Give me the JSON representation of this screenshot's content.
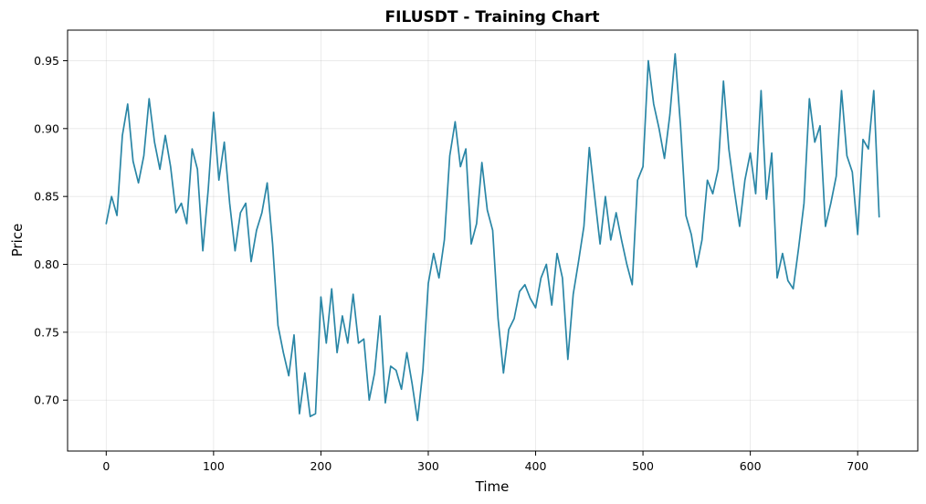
{
  "chart_data": {
    "type": "line",
    "title": "FILUSDT - Training Chart",
    "xlabel": "Time",
    "ylabel": "Price",
    "xlim": [
      -36,
      756
    ],
    "ylim": [
      0.6625,
      0.9725
    ],
    "xticks": [
      0,
      100,
      200,
      300,
      400,
      500,
      600,
      700
    ],
    "yticks": [
      0.7,
      0.75,
      0.8,
      0.85,
      0.9,
      0.95
    ],
    "grid": true,
    "color": "#2a86a6",
    "series": [
      {
        "x": [
          0,
          5,
          10,
          15,
          20,
          25,
          30,
          35,
          40,
          45,
          50,
          55,
          60,
          65,
          70,
          75,
          80,
          85,
          90,
          95,
          100,
          105,
          110,
          115,
          120,
          125,
          130,
          135,
          140,
          145,
          150,
          155,
          160,
          165,
          170,
          175,
          180,
          185,
          190,
          195,
          200,
          205,
          210,
          215,
          220,
          225,
          230,
          235,
          240,
          245,
          250,
          255,
          260,
          265,
          270,
          275,
          280,
          285,
          290,
          295,
          300,
          305,
          310,
          315,
          320,
          325,
          330,
          335,
          340,
          345,
          350,
          355,
          360,
          365,
          370,
          375,
          380,
          385,
          390,
          395,
          400,
          405,
          410,
          415,
          420,
          425,
          430,
          435,
          440,
          445,
          450,
          455,
          460,
          465,
          470,
          475,
          480,
          485,
          490,
          495,
          500,
          505,
          510,
          515,
          520,
          525,
          530,
          535,
          540,
          545,
          550,
          555,
          560,
          565,
          570,
          575,
          580,
          585,
          590,
          595,
          600,
          605,
          610,
          615,
          620,
          625,
          630,
          635,
          640,
          645,
          650,
          655,
          660,
          665,
          670,
          675,
          680,
          685,
          690,
          695,
          700,
          705,
          710,
          715,
          720
        ],
        "y": [
          0.83,
          0.85,
          0.836,
          0.895,
          0.918,
          0.876,
          0.86,
          0.88,
          0.922,
          0.89,
          0.87,
          0.895,
          0.872,
          0.838,
          0.845,
          0.83,
          0.885,
          0.87,
          0.81,
          0.855,
          0.912,
          0.862,
          0.89,
          0.845,
          0.81,
          0.838,
          0.845,
          0.802,
          0.825,
          0.838,
          0.86,
          0.815,
          0.755,
          0.735,
          0.718,
          0.748,
          0.69,
          0.72,
          0.688,
          0.69,
          0.776,
          0.742,
          0.782,
          0.735,
          0.762,
          0.742,
          0.778,
          0.742,
          0.745,
          0.7,
          0.72,
          0.762,
          0.698,
          0.725,
          0.722,
          0.708,
          0.735,
          0.712,
          0.685,
          0.722,
          0.786,
          0.808,
          0.79,
          0.818,
          0.88,
          0.905,
          0.872,
          0.885,
          0.815,
          0.83,
          0.875,
          0.84,
          0.825,
          0.76,
          0.72,
          0.752,
          0.76,
          0.78,
          0.785,
          0.775,
          0.768,
          0.79,
          0.8,
          0.77,
          0.808,
          0.79,
          0.73,
          0.778,
          0.802,
          0.828,
          0.886,
          0.85,
          0.815,
          0.85,
          0.818,
          0.838,
          0.818,
          0.8,
          0.785,
          0.862,
          0.872,
          0.95,
          0.918,
          0.9,
          0.878,
          0.91,
          0.955,
          0.902,
          0.836,
          0.822,
          0.798,
          0.818,
          0.862,
          0.852,
          0.87,
          0.935,
          0.885,
          0.855,
          0.828,
          0.862,
          0.882,
          0.852,
          0.928,
          0.848,
          0.882,
          0.79,
          0.808,
          0.788,
          0.782,
          0.812,
          0.845,
          0.922,
          0.89,
          0.902,
          0.828,
          0.845,
          0.865,
          0.928,
          0.88,
          0.868,
          0.822,
          0.892,
          0.885,
          0.928,
          0.835
        ]
      }
    ]
  }
}
